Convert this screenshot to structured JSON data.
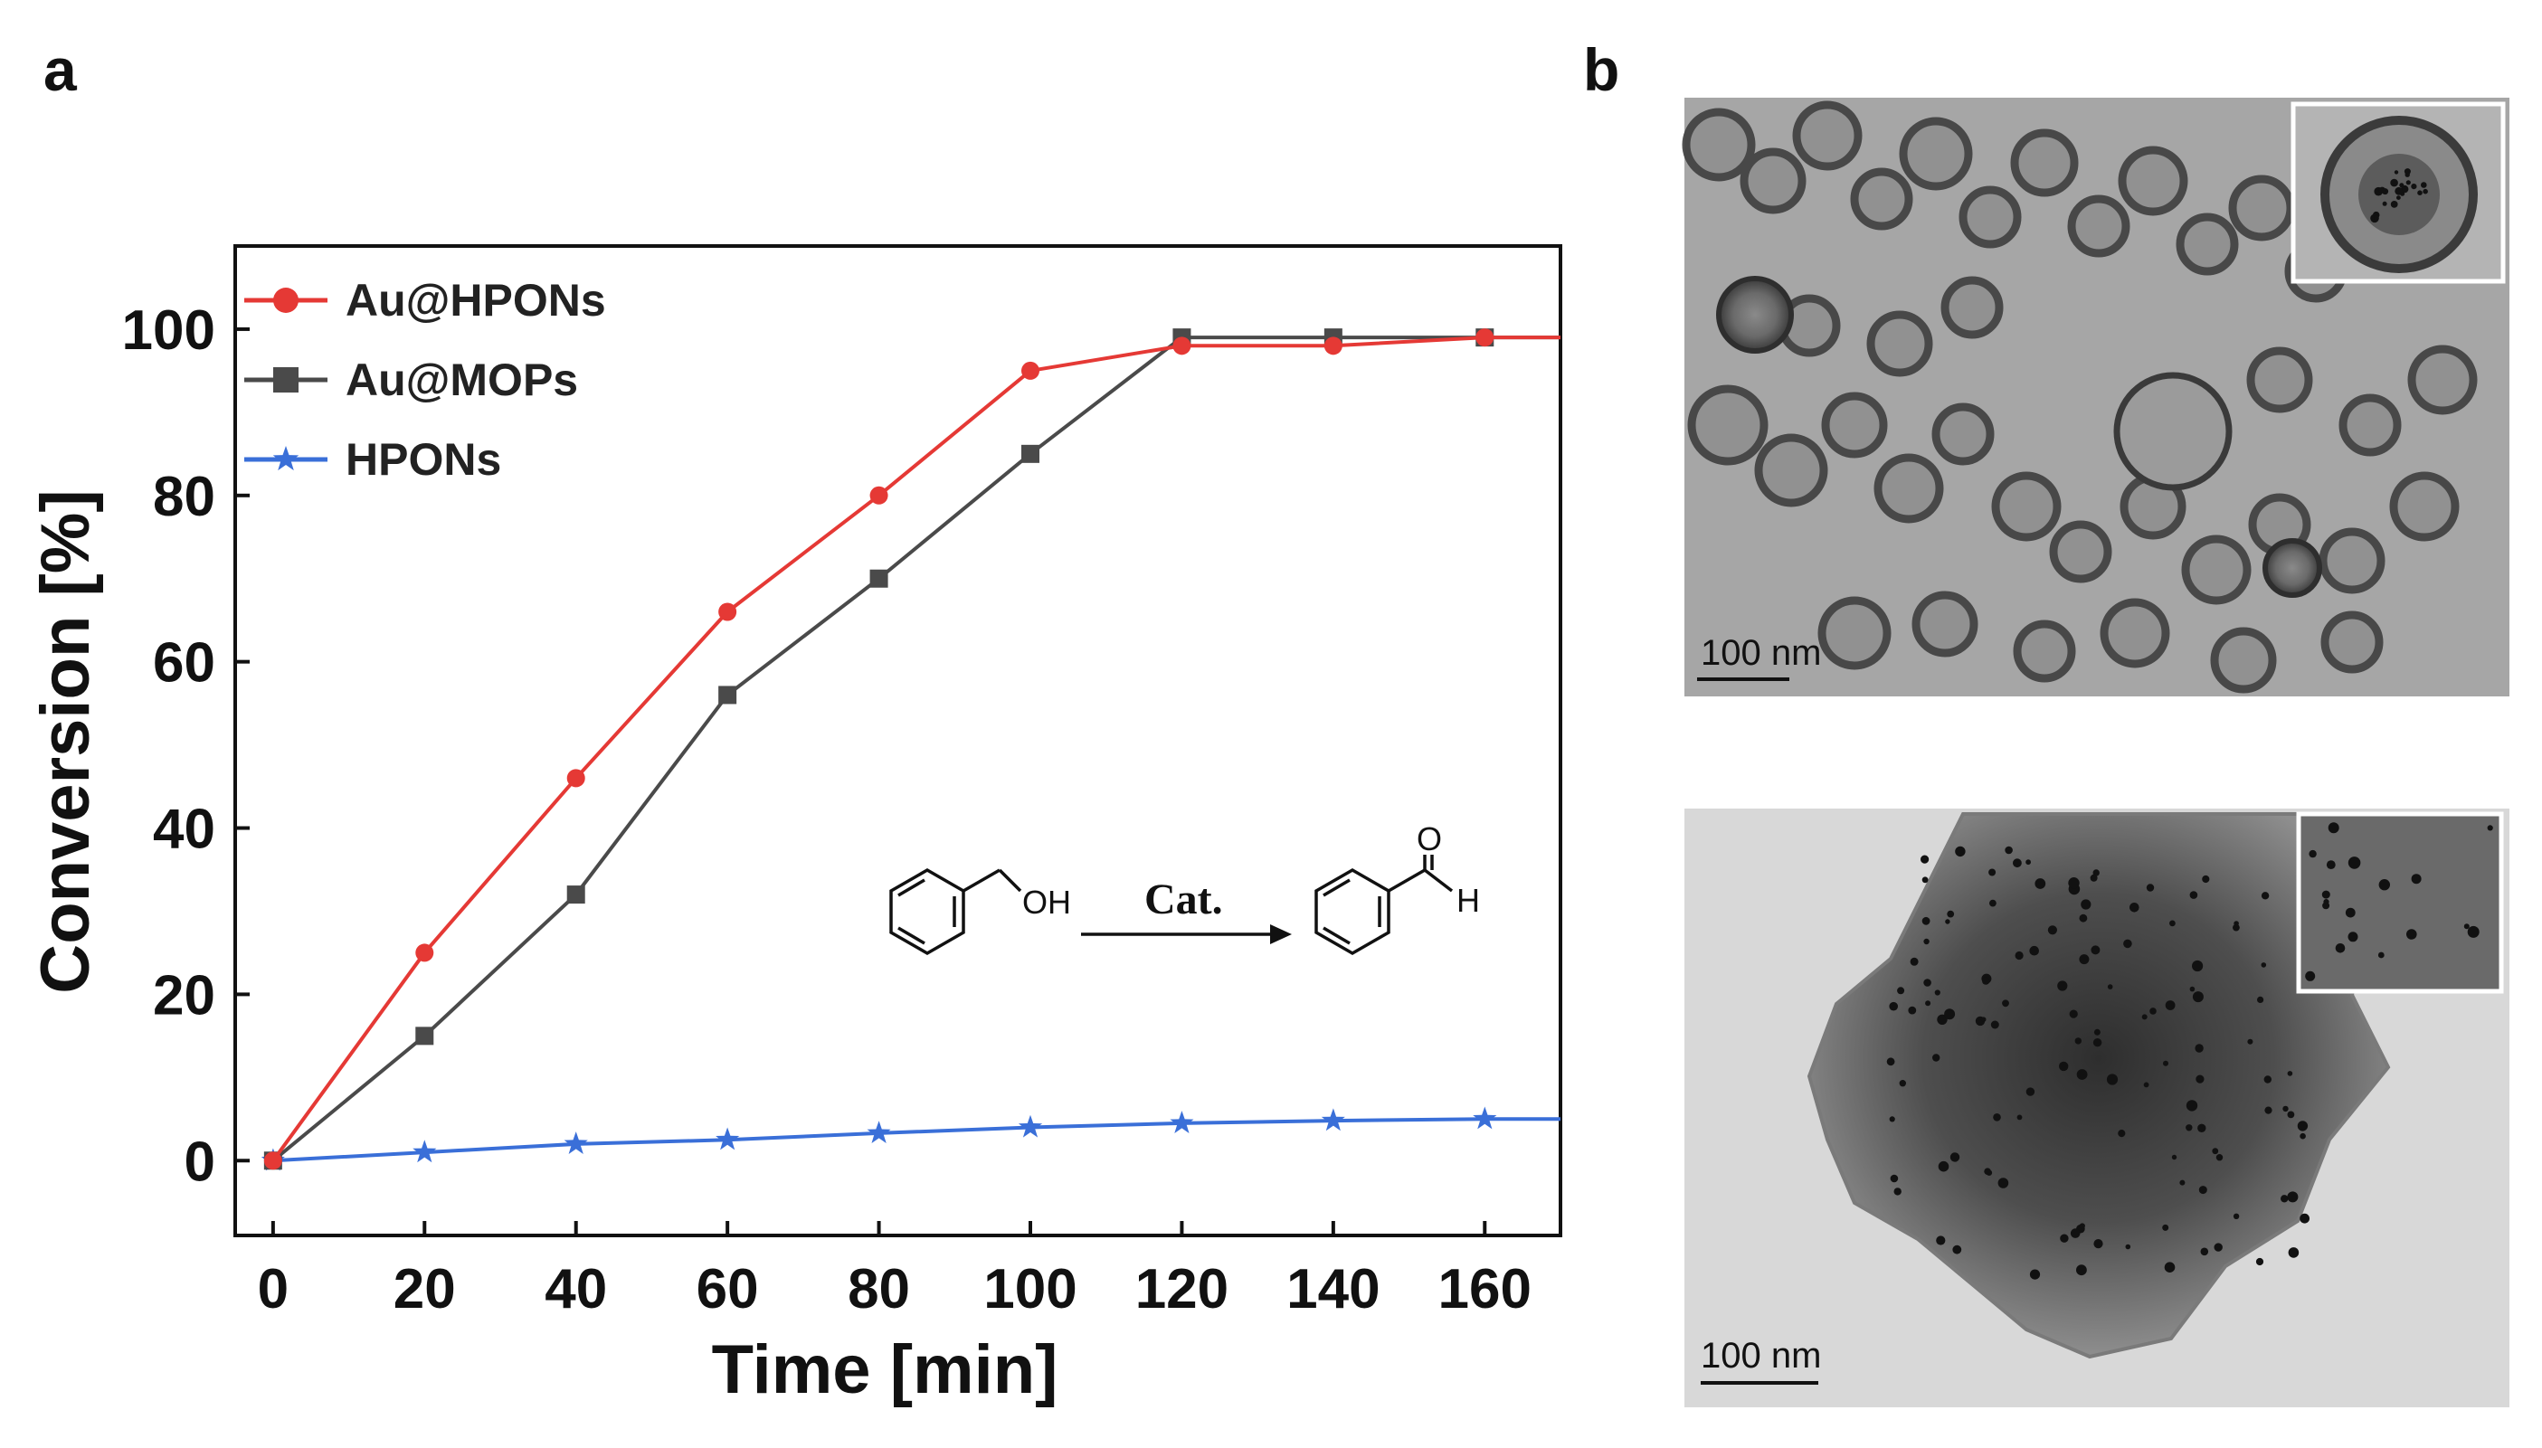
{
  "panels": {
    "a": "a",
    "b": "b"
  },
  "chart_data": {
    "type": "line",
    "xlabel": "Time [min]",
    "ylabel": "Conversion [%]",
    "xlim": [
      -5,
      170
    ],
    "ylim": [
      -9,
      110
    ],
    "xticks": [
      0,
      20,
      40,
      60,
      80,
      100,
      120,
      140,
      160
    ],
    "yticks": [
      0,
      20,
      40,
      60,
      80,
      100
    ],
    "legend_position": "top-left",
    "grid": false,
    "series": [
      {
        "name": "Au@HPONs",
        "color": "#e53935",
        "marker": "circle",
        "x": [
          0,
          20,
          40,
          60,
          80,
          100,
          120,
          140,
          160,
          170
        ],
        "y": [
          0,
          25,
          46,
          66,
          80,
          95,
          98,
          98,
          99,
          99
        ]
      },
      {
        "name": "Au@MOPs",
        "color": "#4a4a4a",
        "marker": "square",
        "x": [
          0,
          20,
          40,
          60,
          80,
          100,
          120,
          140,
          160,
          170
        ],
        "y": [
          0,
          15,
          32,
          56,
          70,
          85,
          99,
          99,
          99,
          99
        ]
      },
      {
        "name": "HPONs",
        "color": "#3a6fd8",
        "marker": "star",
        "x": [
          0,
          20,
          40,
          60,
          80,
          100,
          120,
          140,
          160,
          170
        ],
        "y": [
          0,
          1,
          2,
          2.5,
          3.3,
          4,
          4.5,
          4.8,
          5,
          5
        ]
      }
    ]
  },
  "scheme": {
    "reactant_label": "OH",
    "catalyst_label": "Cat.",
    "product_label": "H",
    "oxygen_label": "O"
  },
  "tem": {
    "top_scale": "100 nm",
    "bottom_scale": "100 nm"
  }
}
